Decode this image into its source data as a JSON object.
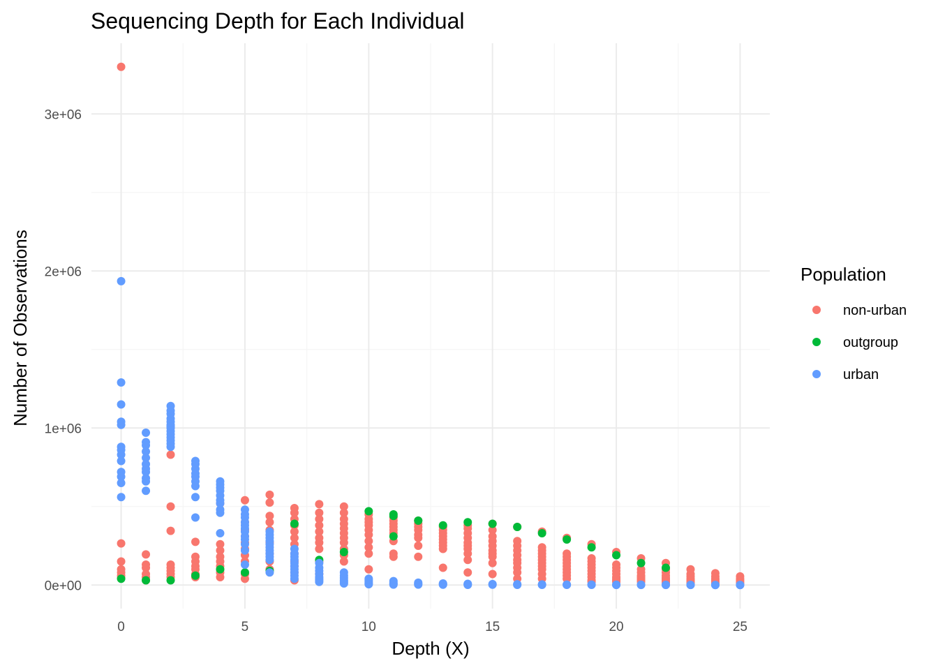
{
  "chart_data": {
    "type": "scatter",
    "title": "Sequencing Depth for Each Individual",
    "xlabel": "Depth (X)",
    "ylabel": "Number of Observations",
    "xlim": [
      -1.2,
      26.2
    ],
    "ylim": [
      -150000,
      3450000
    ],
    "x_ticks": [
      0,
      5,
      10,
      15,
      20,
      25
    ],
    "x_tick_labels": [
      "0",
      "5",
      "10",
      "15",
      "20",
      "25"
    ],
    "y_ticks": [
      0,
      1000000,
      2000000,
      3000000
    ],
    "y_tick_labels": [
      "0e+00",
      "1e+06",
      "2e+06",
      "3e+06"
    ],
    "grid": true,
    "legend": {
      "title": "Population",
      "position": "right"
    },
    "series": [
      {
        "name": "non-urban",
        "color": "#F8766D",
        "x": [
          0,
          0,
          0,
          0,
          0,
          0,
          0,
          1,
          1,
          1,
          1,
          1,
          1,
          2,
          2,
          2,
          2,
          2,
          2,
          2,
          2,
          3,
          3,
          3,
          3,
          3,
          3,
          3,
          4,
          4,
          4,
          4,
          4,
          4,
          4,
          4,
          4,
          5,
          5,
          5,
          5,
          5,
          5,
          5,
          5,
          5,
          5,
          6,
          6,
          6,
          6,
          6,
          6,
          6,
          6,
          6,
          7,
          7,
          7,
          7,
          7,
          7,
          7,
          7,
          7,
          7,
          7,
          7,
          8,
          8,
          8,
          8,
          8,
          8,
          8,
          8,
          8,
          8,
          9,
          9,
          9,
          9,
          9,
          9,
          9,
          9,
          9,
          9,
          9,
          10,
          10,
          10,
          10,
          10,
          10,
          10,
          10,
          10,
          10,
          11,
          11,
          11,
          11,
          11,
          11,
          11,
          11,
          11,
          12,
          12,
          12,
          12,
          12,
          12,
          12,
          12,
          13,
          13,
          13,
          13,
          13,
          13,
          13,
          13,
          13,
          14,
          14,
          14,
          14,
          14,
          14,
          14,
          14,
          14,
          14,
          15,
          15,
          15,
          15,
          15,
          15,
          15,
          15,
          15,
          15,
          16,
          16,
          16,
          16,
          16,
          16,
          16,
          16,
          16,
          16,
          17,
          17,
          17,
          17,
          17,
          17,
          17,
          17,
          17,
          17,
          17,
          18,
          18,
          18,
          18,
          18,
          18,
          18,
          18,
          18,
          18,
          19,
          19,
          19,
          19,
          19,
          19,
          19,
          19,
          19,
          19,
          20,
          20,
          20,
          20,
          20,
          20,
          20,
          20,
          20,
          21,
          21,
          21,
          21,
          21,
          21,
          21,
          21,
          22,
          22,
          22,
          22,
          22,
          22,
          22,
          22,
          23,
          23,
          23,
          23,
          23,
          23,
          23,
          24,
          24,
          24,
          24,
          24,
          24,
          25,
          25,
          25,
          25,
          25
        ],
        "y": [
          3300000,
          265000,
          150000,
          100000,
          80000,
          60000,
          45000,
          195000,
          130000,
          110000,
          70000,
          50000,
          30000,
          830000,
          500000,
          345000,
          130000,
          110000,
          90000,
          70000,
          50000,
          275000,
          180000,
          150000,
          120000,
          100000,
          70000,
          50000,
          520000,
          260000,
          220000,
          180000,
          150000,
          120000,
          100000,
          80000,
          50000,
          540000,
          400000,
          350000,
          310000,
          270000,
          230000,
          190000,
          150000,
          70000,
          40000,
          575000,
          525000,
          440000,
          400000,
          350000,
          270000,
          200000,
          150000,
          100000,
          490000,
          460000,
          420000,
          380000,
          340000,
          300000,
          260000,
          200000,
          150000,
          120000,
          80000,
          30000,
          515000,
          460000,
          420000,
          380000,
          340000,
          300000,
          270000,
          230000,
          150000,
          70000,
          500000,
          460000,
          420000,
          390000,
          360000,
          330000,
          300000,
          270000,
          230000,
          190000,
          150000,
          450000,
          420000,
          400000,
          380000,
          350000,
          320000,
          280000,
          240000,
          200000,
          100000,
          430000,
          410000,
          390000,
          370000,
          350000,
          330000,
          280000,
          200000,
          180000,
          410000,
          390000,
          370000,
          350000,
          320000,
          300000,
          250000,
          180000,
          370000,
          350000,
          330000,
          310000,
          290000,
          270000,
          250000,
          230000,
          110000,
          380000,
          360000,
          330000,
          300000,
          270000,
          250000,
          230000,
          200000,
          160000,
          80000,
          390000,
          350000,
          310000,
          280000,
          250000,
          220000,
          200000,
          180000,
          140000,
          70000,
          370000,
          280000,
          250000,
          220000,
          190000,
          160000,
          140000,
          110000,
          80000,
          40000,
          340000,
          240000,
          220000,
          200000,
          180000,
          160000,
          140000,
          120000,
          100000,
          70000,
          40000,
          300000,
          200000,
          180000,
          160000,
          140000,
          120000,
          100000,
          80000,
          60000,
          40000,
          260000,
          170000,
          150000,
          130000,
          110000,
          90000,
          70000,
          50000,
          30000,
          20000,
          210000,
          130000,
          110000,
          90000,
          70000,
          50000,
          40000,
          30000,
          20000,
          170000,
          100000,
          80000,
          60000,
          50000,
          40000,
          30000,
          20000,
          140000,
          100000,
          80000,
          60000,
          45000,
          35000,
          25000,
          15000,
          100000,
          70000,
          55000,
          40000,
          30000,
          20000,
          10000,
          75000,
          55000,
          40000,
          30000,
          20000,
          10000,
          55000,
          40000,
          30000,
          20000,
          10000
        ]
      },
      {
        "name": "outgroup",
        "color": "#00BA38",
        "x": [
          0,
          1,
          2,
          3,
          4,
          5,
          6,
          7,
          8,
          9,
          10,
          11,
          11,
          11,
          12,
          13,
          14,
          15,
          16,
          17,
          18,
          19,
          20,
          21,
          22
        ],
        "y": [
          40000,
          30000,
          30000,
          60000,
          100000,
          80000,
          90000,
          390000,
          160000,
          210000,
          470000,
          450000,
          440000,
          310000,
          410000,
          380000,
          400000,
          390000,
          370000,
          330000,
          290000,
          240000,
          190000,
          140000,
          110000
        ]
      },
      {
        "name": "urban",
        "color": "#619CFF",
        "x": [
          0,
          0,
          0,
          0,
          0,
          0,
          0,
          0,
          0,
          0,
          0,
          0,
          0,
          1,
          1,
          1,
          1,
          1,
          1,
          1,
          1,
          1,
          1,
          1,
          2,
          2,
          2,
          2,
          2,
          2,
          2,
          2,
          2,
          2,
          2,
          2,
          2,
          2,
          3,
          3,
          3,
          3,
          3,
          3,
          3,
          3,
          3,
          4,
          4,
          4,
          4,
          4,
          4,
          4,
          4,
          4,
          4,
          5,
          5,
          5,
          5,
          5,
          5,
          5,
          5,
          5,
          5,
          5,
          5,
          6,
          6,
          6,
          6,
          6,
          6,
          6,
          6,
          6,
          6,
          6,
          7,
          7,
          7,
          7,
          7,
          7,
          7,
          7,
          7,
          7,
          8,
          8,
          8,
          8,
          8,
          8,
          8,
          8,
          9,
          9,
          9,
          9,
          9,
          9,
          10,
          10,
          10,
          10,
          10,
          11,
          11,
          11,
          11,
          12,
          12,
          12,
          13,
          13,
          13,
          14,
          14,
          14,
          15,
          15,
          16,
          16,
          17,
          17,
          18,
          18,
          19,
          19,
          20,
          20,
          21,
          21,
          22,
          22,
          23,
          23,
          24,
          24,
          25,
          25
        ],
        "y": [
          1935000,
          1290000,
          1150000,
          1040000,
          1020000,
          880000,
          860000,
          830000,
          790000,
          720000,
          690000,
          650000,
          560000,
          970000,
          910000,
          890000,
          850000,
          810000,
          770000,
          740000,
          720000,
          680000,
          660000,
          600000,
          1140000,
          1110000,
          1090000,
          1060000,
          1040000,
          1020000,
          1000000,
          980000,
          960000,
          940000,
          920000,
          900000,
          880000,
          1010000,
          790000,
          770000,
          740000,
          710000,
          690000,
          660000,
          630000,
          560000,
          430000,
          660000,
          640000,
          620000,
          600000,
          570000,
          540000,
          520000,
          480000,
          460000,
          330000,
          480000,
          450000,
          430000,
          400000,
          380000,
          360000,
          340000,
          310000,
          290000,
          260000,
          220000,
          130000,
          340000,
          320000,
          300000,
          280000,
          260000,
          240000,
          220000,
          200000,
          180000,
          160000,
          80000,
          230000,
          200000,
          180000,
          160000,
          140000,
          120000,
          100000,
          80000,
          60000,
          40000,
          140000,
          110000,
          90000,
          70000,
          50000,
          40000,
          30000,
          20000,
          80000,
          60000,
          45000,
          30000,
          20000,
          10000,
          40000,
          30000,
          20000,
          10000,
          5000,
          25000,
          15000,
          8000,
          3000,
          15000,
          8000,
          3000,
          10000,
          5000,
          2000,
          8000,
          4000,
          1000,
          6000,
          2000,
          5000,
          1000,
          4000,
          1000,
          3000,
          1000,
          3000,
          1000,
          2000,
          500,
          2000,
          500,
          1500,
          500,
          1000,
          300,
          800,
          200,
          500,
          100
        ]
      }
    ]
  }
}
